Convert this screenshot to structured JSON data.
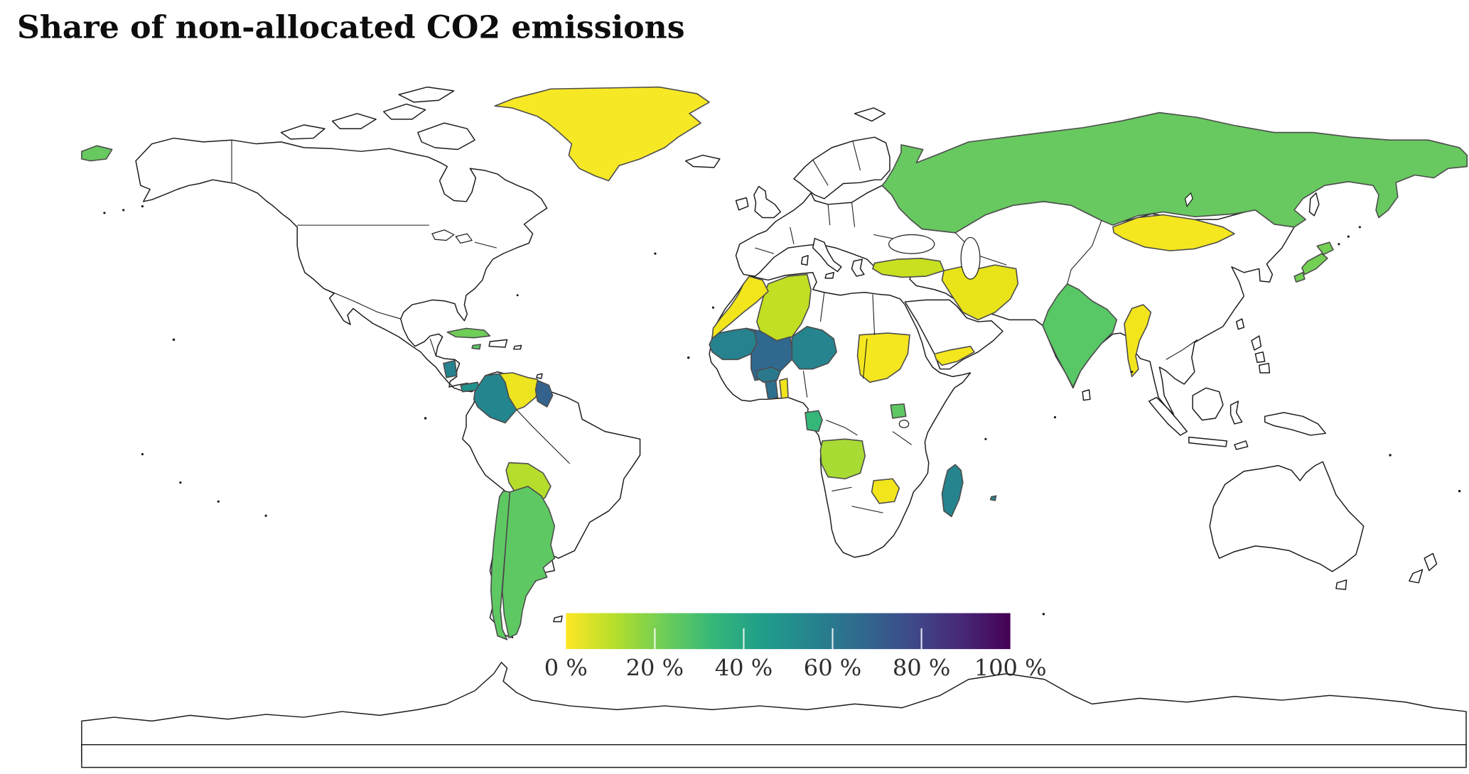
{
  "title": "Share of non-allocated CO2 emissions",
  "chart_data": {
    "type": "choropleth_map",
    "title": "Share of non-allocated CO2 emissions",
    "unit": "%",
    "projection": "equirectangular-world",
    "colorbar": {
      "min": 0,
      "max": 100,
      "orientation": "horizontal",
      "colormap": "viridis (reversed: 0% yellow to 100% dark purple)",
      "tick_labels": [
        "0 %",
        "20 %",
        "40 %",
        "60 %",
        "80 %",
        "100 %"
      ],
      "gradient": [
        {
          "offset": 0,
          "color": "#fde725"
        },
        {
          "offset": 11,
          "color": "#b5de2b"
        },
        {
          "offset": 22,
          "color": "#6ece58"
        },
        {
          "offset": 33,
          "color": "#35b779"
        },
        {
          "offset": 44,
          "color": "#1f9e89"
        },
        {
          "offset": 56,
          "color": "#26828e"
        },
        {
          "offset": 67,
          "color": "#31688e"
        },
        {
          "offset": 78,
          "color": "#3e4989"
        },
        {
          "offset": 89,
          "color": "#482878"
        },
        {
          "offset": 100,
          "color": "#440154"
        }
      ]
    },
    "uncolored_country_fill": "#ffffff",
    "countries": [
      {
        "id": "greenland",
        "name": "Greenland",
        "value": 2,
        "color": "#f7e825"
      },
      {
        "id": "russia",
        "name": "Russia",
        "value": 25,
        "color": "#67c960"
      },
      {
        "id": "mongolia",
        "name": "Mongolia",
        "value": 3,
        "color": "#f4e61f"
      },
      {
        "id": "japan",
        "name": "Japan",
        "value": 24,
        "color": "#74d055"
      },
      {
        "id": "turkey",
        "name": "Turkey",
        "value": 11,
        "color": "#c8e020"
      },
      {
        "id": "iran",
        "name": "Iran",
        "value": 7,
        "color": "#e8e419"
      },
      {
        "id": "india",
        "name": "India",
        "value": 27,
        "color": "#58c765"
      },
      {
        "id": "myanmar",
        "name": "Myanmar",
        "value": 5,
        "color": "#f2e51c"
      },
      {
        "id": "morocco",
        "name": "Morocco & Western Sahara",
        "value": 4,
        "color": "#f2e51c"
      },
      {
        "id": "algeria",
        "name": "Algeria",
        "value": 13,
        "color": "#c2df23"
      },
      {
        "id": "mauritania",
        "name": "Mauritania",
        "value": 55,
        "color": "#26828e"
      },
      {
        "id": "mali",
        "name": "Mali",
        "value": 68,
        "color": "#31688e"
      },
      {
        "id": "niger",
        "name": "Niger",
        "value": 52,
        "color": "#25848e"
      },
      {
        "id": "burkina_faso",
        "name": "Burkina Faso",
        "value": 60,
        "color": "#2a788e"
      },
      {
        "id": "ghana",
        "name": "Ghana",
        "value": 63,
        "color": "#2d708e"
      },
      {
        "id": "benin",
        "name": "Benin & Togo",
        "value": 5,
        "color": "#f2e51c"
      },
      {
        "id": "sudan",
        "name": "Sudan",
        "value": 4,
        "color": "#f4e61f"
      },
      {
        "id": "yemen",
        "name": "Yemen",
        "value": 4,
        "color": "#f4e61f"
      },
      {
        "id": "gabon",
        "name": "Gabon",
        "value": 35,
        "color": "#35b779"
      },
      {
        "id": "uganda",
        "name": "Uganda",
        "value": 25,
        "color": "#5ec962"
      },
      {
        "id": "angola",
        "name": "Angola",
        "value": 15,
        "color": "#a8db34"
      },
      {
        "id": "zimbabwe",
        "name": "Zimbabwe",
        "value": 4,
        "color": "#f2e51c"
      },
      {
        "id": "madagascar",
        "name": "Madagascar",
        "value": 52,
        "color": "#25848e"
      },
      {
        "id": "mauritius",
        "name": "Mauritius",
        "value": 55,
        "color": "#26828e"
      },
      {
        "id": "cuba",
        "name": "Cuba",
        "value": 22,
        "color": "#6ece58"
      },
      {
        "id": "jamaica",
        "name": "Jamaica",
        "value": 25,
        "color": "#5ec962"
      },
      {
        "id": "nicaragua",
        "name": "Nicaragua",
        "value": 55,
        "color": "#26828e"
      },
      {
        "id": "panama",
        "name": "Panama",
        "value": 48,
        "color": "#21918c"
      },
      {
        "id": "colombia",
        "name": "Colombia",
        "value": 52,
        "color": "#23858d"
      },
      {
        "id": "venezuela",
        "name": "Venezuela",
        "value": 6,
        "color": "#ece51f"
      },
      {
        "id": "guyana",
        "name": "Guyana",
        "value": 70,
        "color": "#33638d"
      },
      {
        "id": "bolivia",
        "name": "Bolivia",
        "value": 14,
        "color": "#b5dd2b"
      },
      {
        "id": "chile",
        "name": "Chile",
        "value": 25,
        "color": "#5ec962"
      },
      {
        "id": "argentina",
        "name": "Argentina",
        "value": 25,
        "color": "#5ec962"
      }
    ]
  }
}
